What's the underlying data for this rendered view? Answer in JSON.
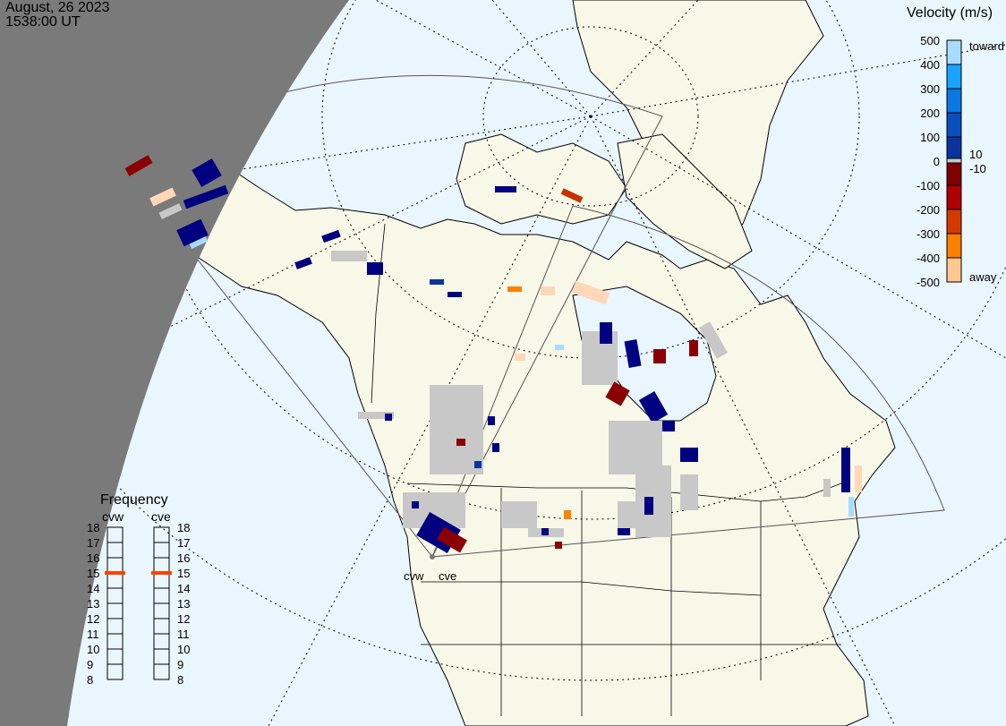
{
  "header": {
    "date": "August, 26 2023",
    "time": "1538:00 UT"
  },
  "velocity_scale": {
    "title": "Velocity (m/s)",
    "ticks": [
      "500",
      "400",
      "300",
      "200",
      "100",
      "0",
      "-100",
      "-200",
      "-300",
      "-400",
      "-500"
    ],
    "toward_label": "toward",
    "away_label": "away",
    "ground_scatter_upper": "10",
    "ground_scatter_lower": "-10",
    "colors": [
      "#a8dcff",
      "#1aa3ff",
      "#0a78e0",
      "#0a4fc0",
      "#0a33a0",
      "#000080",
      "#800000",
      "#b00000",
      "#d43a00",
      "#ff7f00",
      "#ffc890"
    ],
    "ground_scatter_color": "#c8c8c8"
  },
  "frequency_panel": {
    "title": "Frequency",
    "radars": [
      {
        "name": "cvw",
        "frequency_mhz": 15
      },
      {
        "name": "cve",
        "frequency_mhz": 15
      }
    ],
    "ticks": [
      "18",
      "17",
      "16",
      "15",
      "14",
      "13",
      "12",
      "11",
      "10",
      "9",
      "8"
    ],
    "marker_color": "#ff4000"
  },
  "map": {
    "radar_labels": [
      "cvw",
      "cve"
    ],
    "land_color": "#f8f8e8",
    "ocean_color": "#eaf6fe",
    "night_color": "#7a7a7a"
  }
}
